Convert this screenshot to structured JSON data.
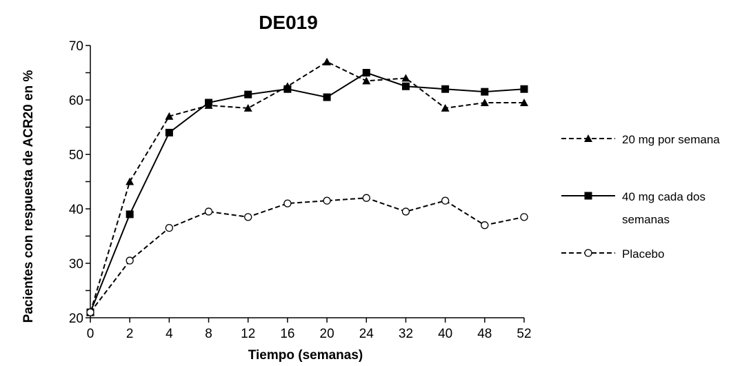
{
  "chart_data": {
    "type": "line",
    "title": "DE019",
    "xlabel": "Tiempo (semanas)",
    "ylabel": "Pacientes con respuesta de ACR20 en %",
    "categories": [
      "0",
      "2",
      "4",
      "8",
      "12",
      "16",
      "20",
      "24",
      "32",
      "40",
      "48",
      "52"
    ],
    "ylim": [
      20,
      70
    ],
    "yticks": [
      "20",
      "30",
      "40",
      "50",
      "60",
      "70"
    ],
    "grid": false,
    "legend_position": "right",
    "series": [
      {
        "name": "20 mg por semana",
        "marker": "triangle",
        "line_style": "dashed",
        "color": "#000000",
        "values": [
          21,
          45,
          57,
          59,
          58.5,
          62.5,
          67,
          63.5,
          64,
          58.5,
          59.5,
          59.5
        ]
      },
      {
        "name": "40 mg cada dos semanas",
        "marker": "square",
        "line_style": "solid",
        "color": "#000000",
        "values": [
          21,
          39,
          54,
          59.5,
          61,
          62,
          60.5,
          65,
          62.5,
          62,
          61.5,
          62
        ]
      },
      {
        "name": "Placebo",
        "marker": "circle-open",
        "line_style": "dashed",
        "color": "#000000",
        "values": [
          21,
          30.5,
          36.5,
          39.5,
          38.5,
          41,
          41.5,
          42,
          39.5,
          41.5,
          37,
          38.5
        ]
      }
    ],
    "legend": {
      "items": [
        {
          "lines": [
            "20 mg por semana"
          ]
        },
        {
          "lines": [
            "40 mg cada dos",
            "semanas"
          ]
        },
        {
          "lines": [
            "Placebo"
          ]
        }
      ]
    }
  }
}
